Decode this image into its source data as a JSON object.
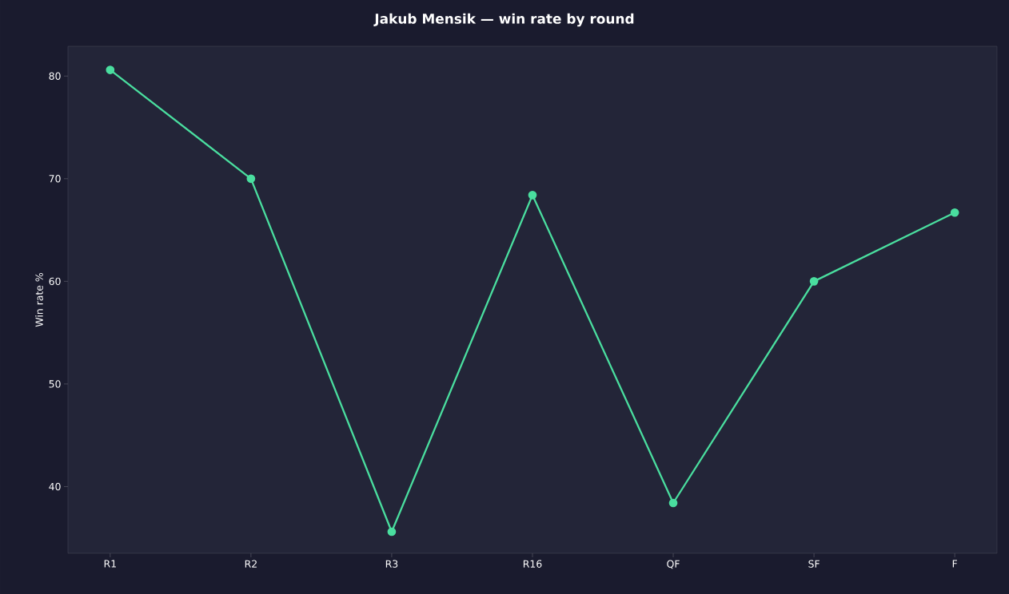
{
  "chart_data": {
    "type": "line",
    "title": "Jakub Mensik — win rate by round",
    "ylabel": "Win rate %",
    "categories": [
      "R1",
      "R2",
      "R3",
      "R16",
      "QF",
      "SF",
      "F"
    ],
    "series": [
      {
        "color": "#4ade9f",
        "values": [
          80.6,
          70.0,
          35.6,
          68.4,
          38.4,
          60.0,
          66.7
        ]
      }
    ],
    "ylim": [
      33.5,
      82.9
    ],
    "yticks": [
      40,
      50,
      60,
      70,
      80
    ],
    "marker": "circle",
    "line_style": "solid"
  }
}
